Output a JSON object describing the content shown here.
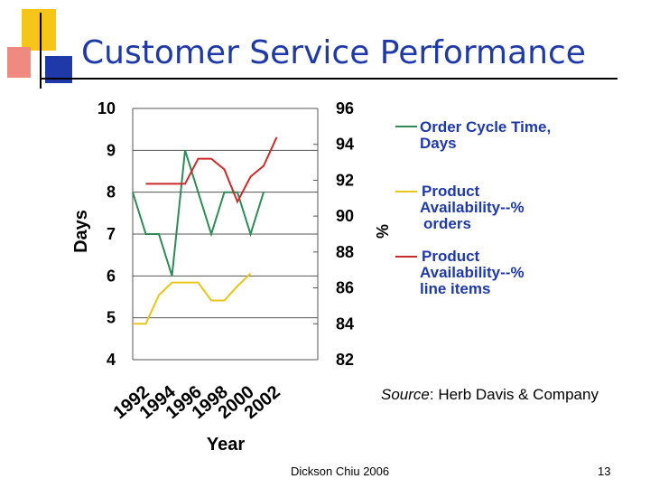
{
  "slide": {
    "title": "Customer Service Performance",
    "footer": "Dickson Chiu 2006",
    "page_number": "13",
    "source_label": "Source",
    "source_text": ": Herb Davis & Company"
  },
  "legend": {
    "items": [
      {
        "lines": [
          "Order Cycle Time,",
          "Days"
        ],
        "color": "#2e8b57"
      },
      {
        "lines": [
          "Product",
          "Availability--%",
          "orders"
        ],
        "color": "#e6c619"
      },
      {
        "lines": [
          "Product",
          "Availability--%",
          "line items"
        ],
        "color": "#cc2a2a"
      }
    ]
  },
  "colors": {
    "title": "#1f3aa8",
    "deco_yellow": "#f5c518",
    "deco_red": "#e8554e",
    "deco_blue": "#1f3aa8"
  },
  "chart_data": {
    "type": "line",
    "title": "",
    "xlabel": "Year",
    "ylabel_left": "Days",
    "ylabel_right": "%",
    "ylim_left": [
      4,
      10
    ],
    "ylim_right": [
      82,
      96
    ],
    "left_ticks": [
      "10",
      "9",
      "8",
      "7",
      "6",
      "5",
      "4"
    ],
    "right_ticks": [
      "96",
      "94",
      "92",
      "90",
      "88",
      "86",
      "84",
      "82"
    ],
    "x_tick_labels": [
      "1992",
      "1994",
      "1996",
      "1998",
      "2000",
      "2002"
    ],
    "x": [
      1991,
      1992,
      1993,
      1994,
      1995,
      1996,
      1997,
      1998,
      1999,
      2000,
      2001,
      2002
    ],
    "series": [
      {
        "name": "Order Cycle Time, Days",
        "axis": "left",
        "color": "#2e8b57",
        "values": [
          8,
          7,
          7,
          6,
          9,
          8,
          7,
          8,
          8,
          7,
          8,
          null
        ]
      },
      {
        "name": "Product Availability--% orders",
        "axis": "right",
        "color": "#e6c619",
        "values": [
          84,
          84,
          85.6,
          86.3,
          86.3,
          86.3,
          85.3,
          85.3,
          86.1,
          86.8,
          null,
          null
        ]
      },
      {
        "name": "Product Availability--% line items",
        "axis": "right",
        "color": "#cc2a2a",
        "values": [
          null,
          91.8,
          91.8,
          91.8,
          91.8,
          93.2,
          93.2,
          92.6,
          90.8,
          92.2,
          92.8,
          94.4
        ]
      }
    ],
    "grid": true
  }
}
